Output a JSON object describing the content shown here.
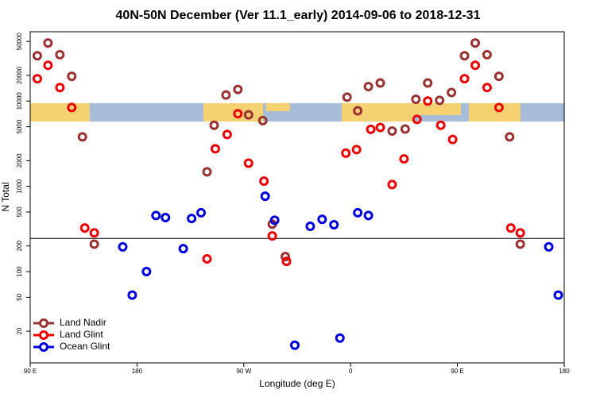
{
  "chart_data": {
    "type": "scatter",
    "title": "40N-50N December (Ver 11.1_early)   2014-09-06 to 2018-12-31",
    "x_label": "Longitude (deg E)",
    "y_label": "N Total",
    "xlim": [
      90,
      540
    ],
    "ylim": [
      8.5,
      65000
    ],
    "log_y": true,
    "xticks": [
      {
        "value": 90,
        "label": "90 E"
      },
      {
        "value": 180,
        "label": "180"
      },
      {
        "value": 270,
        "label": "90 W"
      },
      {
        "value": 360,
        "label": "0"
      },
      {
        "value": 450,
        "label": "90 E"
      },
      {
        "value": 540,
        "label": "180"
      }
    ],
    "yticks": [
      20,
      50,
      100,
      200,
      500,
      1000,
      2000,
      5000,
      10000,
      20000,
      50000
    ],
    "hline": 245,
    "legend": "bottom-left",
    "series": [
      {
        "name": "Land Nadir",
        "color": "#993333",
        "x": [
          96,
          105,
          115,
          125,
          134,
          144,
          239,
          245,
          255,
          265,
          274,
          286,
          294,
          305,
          357,
          366,
          375,
          385,
          395,
          406,
          415,
          425,
          435,
          445,
          456,
          465,
          475,
          485,
          494,
          503
        ],
        "values": [
          34000,
          48000,
          35000,
          19500,
          3800,
          210,
          1480,
          5200,
          11800,
          13700,
          6900,
          5900,
          360,
          150,
          11100,
          7700,
          14800,
          16300,
          4450,
          4700,
          10500,
          16300,
          10200,
          12600,
          34000,
          48000,
          35000,
          19500,
          3800,
          210
        ]
      },
      {
        "name": "Land Glint",
        "color": "#ee0000",
        "x": [
          96,
          105,
          115,
          125,
          136,
          144,
          239,
          246,
          256,
          265,
          274,
          287,
          294,
          306,
          356,
          365,
          377,
          385,
          395,
          405,
          416,
          425,
          436,
          446,
          456,
          465,
          475,
          485,
          495,
          503
        ],
        "values": [
          18300,
          26300,
          14400,
          8400,
          325,
          285,
          141,
          2760,
          4060,
          7100,
          1870,
          1150,
          262,
          132,
          2450,
          2700,
          4660,
          4900,
          1050,
          2100,
          6100,
          10000,
          5200,
          3550,
          18300,
          26300,
          14400,
          8400,
          325,
          285
        ]
      },
      {
        "name": "Ocean Glint",
        "color": "#0000dd",
        "x": [
          168,
          176,
          188,
          196,
          204,
          219,
          226,
          234,
          288,
          296,
          313,
          326,
          336,
          346,
          351,
          366,
          375,
          527,
          535
        ],
        "values": [
          195,
          53,
          100,
          455,
          430,
          186,
          420,
          490,
          765,
          400,
          13.7,
          340,
          410,
          355,
          16.6,
          490,
          455,
          195,
          53
        ]
      }
    ]
  }
}
